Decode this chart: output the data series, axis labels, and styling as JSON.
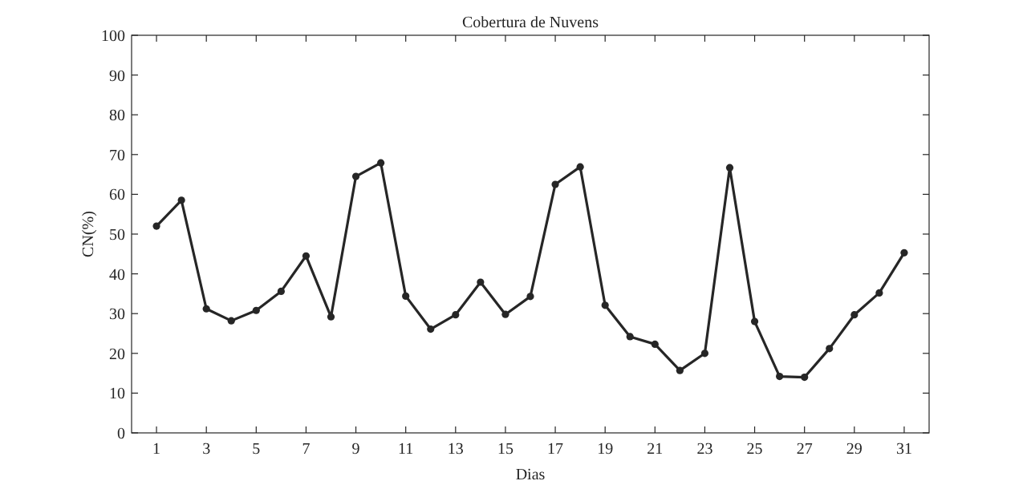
{
  "chart_data": {
    "type": "line",
    "title": "Cobertura de Nuvens",
    "xlabel": "Dias",
    "ylabel": "CN(%)",
    "x": [
      1,
      2,
      3,
      4,
      5,
      6,
      7,
      8,
      9,
      10,
      11,
      12,
      13,
      14,
      15,
      16,
      17,
      18,
      19,
      20,
      21,
      22,
      23,
      24,
      25,
      26,
      27,
      28,
      29,
      30,
      31
    ],
    "series": [
      {
        "color": "#262626",
        "values": [
          52.0,
          58.5,
          31.2,
          28.2,
          30.8,
          35.6,
          44.5,
          29.2,
          64.5,
          67.9,
          34.4,
          26.1,
          29.7,
          37.9,
          29.8,
          34.3,
          62.5,
          66.9,
          32.1,
          24.2,
          22.3,
          15.7,
          20.0,
          66.7,
          28.0,
          14.2,
          14.0,
          21.2,
          29.7,
          35.2,
          45.3
        ]
      }
    ],
    "xlim": [
      0,
      32
    ],
    "xticks": [
      1,
      3,
      5,
      7,
      9,
      11,
      13,
      15,
      17,
      19,
      21,
      23,
      25,
      27,
      29,
      31
    ],
    "ylim": [
      0,
      100
    ],
    "yticks": [
      0,
      10,
      20,
      30,
      40,
      50,
      60,
      70,
      80,
      90,
      100
    ],
    "marker": "circle",
    "line_style": "solid"
  }
}
